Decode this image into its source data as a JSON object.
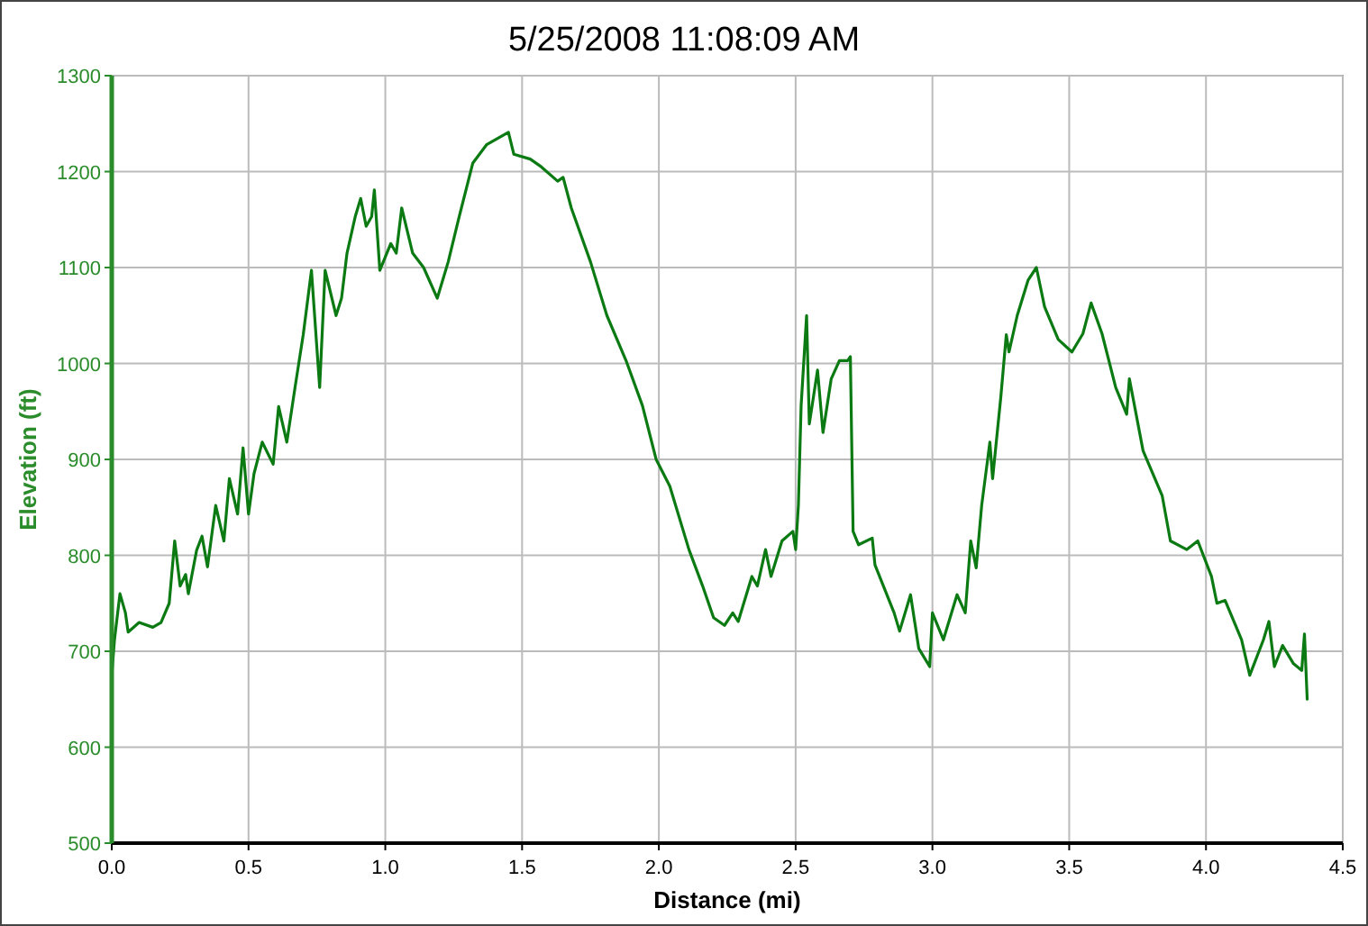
{
  "chart_data": {
    "type": "line",
    "title": "5/25/2008 11:08:09 AM",
    "xlabel": "Distance (mi)",
    "ylabel": "Elevation (ft)",
    "xlim": [
      0,
      4.5
    ],
    "ylim": [
      500,
      1300
    ],
    "xticks": [
      {
        "value": 0,
        "label": "0.0"
      },
      {
        "value": 0.5,
        "label": "0.5"
      },
      {
        "value": 1,
        "label": "1.0"
      },
      {
        "value": 1.5,
        "label": "1.5"
      },
      {
        "value": 2,
        "label": "2.0"
      },
      {
        "value": 2.5,
        "label": "2.5"
      },
      {
        "value": 3,
        "label": "3.0"
      },
      {
        "value": 3.5,
        "label": "3.5"
      },
      {
        "value": 4,
        "label": "4.0"
      },
      {
        "value": 4.5,
        "label": "4.5"
      }
    ],
    "yticks": [
      500,
      600,
      700,
      800,
      900,
      1000,
      1100,
      1200,
      1300
    ],
    "grid": true,
    "marker": "none",
    "line_style": "solid",
    "series": [
      {
        "color": "#0b7a12",
        "x": [
          0,
          0.01,
          0.03,
          0.05,
          0.06,
          0.1,
          0.15,
          0.18,
          0.21,
          0.23,
          0.25,
          0.27,
          0.28,
          0.31,
          0.33,
          0.35,
          0.38,
          0.41,
          0.43,
          0.46,
          0.48,
          0.5,
          0.52,
          0.55,
          0.59,
          0.61,
          0.64,
          0.67,
          0.7,
          0.73,
          0.76,
          0.78,
          0.82,
          0.84,
          0.86,
          0.89,
          0.91,
          0.93,
          0.95,
          0.96,
          0.98,
          1.02,
          1.04,
          1.06,
          1.1,
          1.14,
          1.19,
          1.23,
          1.27,
          1.32,
          1.37,
          1.45,
          1.47,
          1.53,
          1.57,
          1.63,
          1.65,
          1.68,
          1.75,
          1.81,
          1.88,
          1.94,
          1.99,
          2.04,
          2.11,
          2.16,
          2.2,
          2.24,
          2.27,
          2.29,
          2.34,
          2.36,
          2.39,
          2.41,
          2.45,
          2.49,
          2.5,
          2.51,
          2.52,
          2.54,
          2.55,
          2.58,
          2.6,
          2.63,
          2.66,
          2.69,
          2.7,
          2.71,
          2.73,
          2.78,
          2.79,
          2.86,
          2.88,
          2.92,
          2.95,
          2.99,
          3,
          3.04,
          3.09,
          3.12,
          3.14,
          3.16,
          3.18,
          3.21,
          3.22,
          3.25,
          3.27,
          3.28,
          3.31,
          3.35,
          3.38,
          3.41,
          3.46,
          3.51,
          3.55,
          3.58,
          3.62,
          3.67,
          3.71,
          3.72,
          3.77,
          3.84,
          3.87,
          3.93,
          3.97,
          4.02,
          4.04,
          4.07,
          4.13,
          4.16,
          4.21,
          4.23,
          4.25,
          4.28,
          4.32,
          4.35,
          4.36,
          4.37
        ],
        "values": [
          675,
          712,
          760,
          740,
          720,
          730,
          725,
          730,
          750,
          815,
          768,
          780,
          760,
          805,
          820,
          788,
          852,
          815,
          880,
          843,
          912,
          843,
          885,
          918,
          895,
          955,
          918,
          975,
          1030,
          1097,
          975,
          1097,
          1050,
          1068,
          1115,
          1153,
          1172,
          1143,
          1153,
          1181,
          1097,
          1125,
          1115,
          1162,
          1115,
          1100,
          1068,
          1106,
          1153,
          1209,
          1228,
          1241,
          1218,
          1213,
          1205,
          1190,
          1194,
          1162,
          1106,
          1050,
          1003,
          956,
          900,
          872,
          806,
          768,
          735,
          727,
          740,
          731,
          778,
          768,
          806,
          778,
          815,
          825,
          806,
          852,
          956,
          1050,
          937,
          993,
          928,
          984,
          1003,
          1003,
          1007,
          825,
          811,
          818,
          790,
          740,
          721,
          759,
          703,
          684,
          740,
          712,
          759,
          740,
          815,
          787,
          852,
          918,
          880,
          965,
          1030,
          1012,
          1050,
          1087,
          1100,
          1059,
          1025,
          1012,
          1031,
          1063,
          1031,
          975,
          947,
          984,
          909,
          862,
          815,
          806,
          815,
          778,
          750,
          753,
          712,
          675,
          712,
          731,
          684,
          706,
          687,
          680,
          718,
          650
        ]
      }
    ]
  }
}
